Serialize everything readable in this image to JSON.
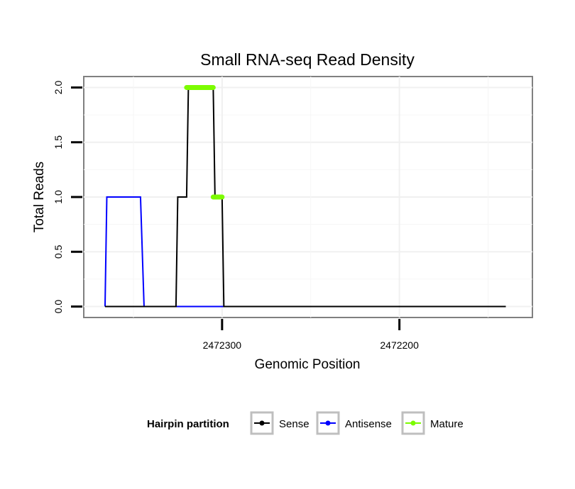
{
  "chart_data": {
    "type": "line",
    "title": "Small RNA-seq Read Density",
    "xlabel": "Genomic Position",
    "ylabel": "Total Reads",
    "x_reversed": true,
    "xlim": [
      2472378,
      2472125
    ],
    "ylim": [
      -0.1,
      2.1
    ],
    "x_ticks": [
      2472300,
      2472200
    ],
    "x_tick_labels": [
      "2472300",
      "2472200"
    ],
    "y_ticks": [
      0.0,
      0.5,
      1.0,
      1.5,
      2.0
    ],
    "y_tick_labels": [
      "0.0",
      "0.5",
      "1.0",
      "1.5",
      "2.0"
    ],
    "legend": {
      "title": "Hairpin partition",
      "position": "bottom",
      "entries": [
        "Sense",
        "Antisense",
        "Mature"
      ]
    },
    "series": [
      {
        "name": "Sense",
        "color": "#000000",
        "x": [
          2472366,
          2472326,
          2472325,
          2472320,
          2472319,
          2472305,
          2472304,
          2472300,
          2472299,
          2472140
        ],
        "y": [
          0,
          0,
          1,
          1,
          2,
          2,
          1,
          1,
          0,
          0
        ]
      },
      {
        "name": "Antisense",
        "color": "#0000ff",
        "x": [
          2472366,
          2472365,
          2472346,
          2472344,
          2472326,
          2472299
        ],
        "y": [
          0,
          1,
          1,
          0,
          0,
          0
        ]
      },
      {
        "name": "Mature",
        "color": "#7cfc00",
        "segments": [
          {
            "x": [
              2472320,
              2472305
            ],
            "y": [
              2,
              2
            ]
          },
          {
            "x": [
              2472305,
              2472300
            ],
            "y": [
              1,
              1
            ]
          }
        ]
      }
    ]
  }
}
